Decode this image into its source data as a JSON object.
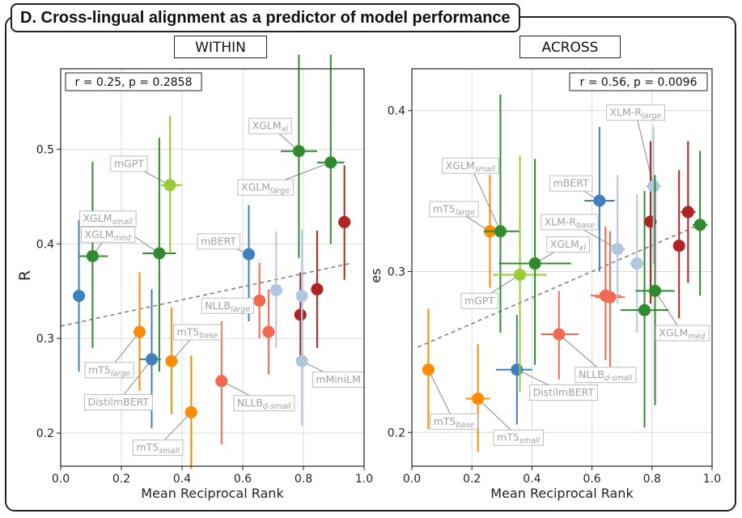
{
  "panel_title": "D. Cross-lingual alignment as a predictor of model performance",
  "colors": {
    "dark_green": "#2e8b2e",
    "light_green": "#9acd32",
    "orange": "#ff8c00",
    "blue": "#3f7fbf",
    "light_blue": "#afc8e0",
    "salmon": "#f4684f",
    "dark_red": "#b22222",
    "trend": "#808080",
    "label_border": "#bdbdbd",
    "label_text": "#a0a0a0"
  },
  "chart_data": [
    {
      "type": "scatter",
      "subtitle": "WITHIN",
      "annotation": "r = 0.25, p = 0.2858",
      "xlabel": "Mean Reciprocal Rank",
      "ylabel": "R",
      "xlim": [
        0.0,
        1.0
      ],
      "ylim": [
        0.165,
        0.585
      ],
      "xticks": [
        0.0,
        0.2,
        0.4,
        0.6,
        0.8,
        1.0
      ],
      "xtick_labels": [
        "0.0",
        "0.2",
        "0.4",
        "0.6",
        "0.8",
        "1.0"
      ],
      "yticks": [
        0.2,
        0.3,
        0.4,
        0.5
      ],
      "ytick_labels": [
        "0.2",
        "0.3",
        "0.4",
        "0.5"
      ],
      "trend": [
        [
          0.0,
          0.313
        ],
        [
          0.95,
          0.379
        ]
      ],
      "points": [
        {
          "x": 0.06,
          "y": 0.345,
          "color": "blue",
          "xerr": [
            0.06,
            0.06
          ],
          "yerr": [
            0.265,
            0.425
          ]
        },
        {
          "x": 0.105,
          "y": 0.387,
          "color": "dark_green",
          "xerr": [
            0.06,
            0.155
          ],
          "yerr": [
            0.29,
            0.487
          ]
        },
        {
          "x": 0.26,
          "y": 0.307,
          "color": "orange",
          "xerr": [
            0.245,
            0.275
          ],
          "yerr": [
            0.245,
            0.37
          ]
        },
        {
          "x": 0.3,
          "y": 0.278,
          "color": "blue",
          "xerr": [
            0.26,
            0.33
          ],
          "yerr": [
            0.205,
            0.352
          ]
        },
        {
          "x": 0.325,
          "y": 0.39,
          "color": "dark_green",
          "xerr": [
            0.27,
            0.38
          ],
          "yerr": [
            0.265,
            0.512
          ]
        },
        {
          "x": 0.36,
          "y": 0.462,
          "color": "light_green",
          "xerr": [
            0.33,
            0.4
          ],
          "yerr": [
            0.39,
            0.535
          ]
        },
        {
          "x": 0.365,
          "y": 0.276,
          "color": "orange",
          "xerr": [
            0.345,
            0.385
          ],
          "yerr": [
            0.22,
            0.333
          ]
        },
        {
          "x": 0.43,
          "y": 0.222,
          "color": "orange",
          "xerr": [
            0.41,
            0.45
          ],
          "yerr": [
            0.162,
            0.282
          ]
        },
        {
          "x": 0.53,
          "y": 0.255,
          "color": "salmon",
          "xerr": [
            0.51,
            0.55
          ],
          "yerr": [
            0.188,
            0.318
          ]
        },
        {
          "x": 0.62,
          "y": 0.389,
          "color": "blue",
          "xerr": [
            0.6,
            0.64
          ],
          "yerr": [
            0.318,
            0.441
          ]
        },
        {
          "x": 0.655,
          "y": 0.34,
          "color": "salmon",
          "xerr": [
            0.635,
            0.675
          ],
          "yerr": [
            0.3,
            0.38
          ]
        },
        {
          "x": 0.685,
          "y": 0.307,
          "color": "salmon",
          "xerr": [
            0.665,
            0.705
          ],
          "yerr": [
            0.262,
            0.352
          ]
        },
        {
          "x": 0.71,
          "y": 0.351,
          "color": "light_blue",
          "xerr": [
            0.69,
            0.73
          ],
          "yerr": [
            0.29,
            0.413
          ]
        },
        {
          "x": 0.785,
          "y": 0.498,
          "color": "dark_green",
          "xerr": [
            0.725,
            0.845
          ],
          "yerr": [
            0.385,
            0.6
          ]
        },
        {
          "x": 0.79,
          "y": 0.325,
          "color": "dark_red",
          "xerr": [
            0.775,
            0.805
          ],
          "yerr": [
            0.28,
            0.37
          ]
        },
        {
          "x": 0.795,
          "y": 0.345,
          "color": "light_blue",
          "xerr": [
            0.78,
            0.81
          ],
          "yerr": [
            0.28,
            0.415
          ]
        },
        {
          "x": 0.795,
          "y": 0.276,
          "color": "light_blue",
          "xerr": [
            0.78,
            0.81
          ],
          "yerr": [
            0.208,
            0.378
          ]
        },
        {
          "x": 0.845,
          "y": 0.352,
          "color": "dark_red",
          "xerr": [
            0.825,
            0.865
          ],
          "yerr": [
            0.29,
            0.414
          ]
        },
        {
          "x": 0.89,
          "y": 0.486,
          "color": "dark_green",
          "xerr": [
            0.845,
            0.935
          ],
          "yerr": [
            0.4,
            0.6
          ]
        },
        {
          "x": 0.935,
          "y": 0.423,
          "color": "dark_red",
          "xerr": [
            0.915,
            0.955
          ],
          "yerr": [
            0.362,
            0.483
          ]
        }
      ],
      "labels": [
        {
          "text": "mGPT",
          "point": 5,
          "lx": 0.225,
          "ly": 0.485
        },
        {
          "text": "XGLM",
          "sub": "xl",
          "point": 13,
          "lx": 0.69,
          "ly": 0.525
        },
        {
          "text": "XGLM",
          "sub": "large",
          "point": 18,
          "lx": 0.675,
          "ly": 0.46
        },
        {
          "text": "XGLM",
          "sub": "small",
          "point": 4,
          "lx": 0.155,
          "ly": 0.427
        },
        {
          "text": "XGLM",
          "sub": "med",
          "point": 1,
          "lx": 0.155,
          "ly": 0.41
        },
        {
          "text": "mBERT",
          "point": 9,
          "lx": 0.52,
          "ly": 0.403
        },
        {
          "text": "NLLB",
          "sub": "large",
          "point": 10,
          "lx": 0.55,
          "ly": 0.335
        },
        {
          "text": "mT5",
          "sub": "base",
          "point": 6,
          "lx": 0.45,
          "ly": 0.307
        },
        {
          "text": "mT5",
          "sub": "large",
          "point": 2,
          "lx": 0.16,
          "ly": 0.267
        },
        {
          "text": "DistilmBERT",
          "point": 3,
          "lx": 0.19,
          "ly": 0.233
        },
        {
          "text": "NLLB",
          "sub": "d-small",
          "point": 8,
          "lx": 0.67,
          "ly": 0.232
        },
        {
          "text": "mMiniLM",
          "point": 16,
          "lx": 0.915,
          "ly": 0.257
        },
        {
          "text": "mT5",
          "sub": "small",
          "point": 7,
          "lx": 0.32,
          "ly": 0.185
        }
      ]
    },
    {
      "type": "scatter",
      "subtitle": "ACROSS",
      "annotation": "r = 0.56, p = 0.0096",
      "xlabel": "Mean Reciprocal Rank",
      "ylabel": "es",
      "xlim": [
        0.0,
        1.0
      ],
      "ylim": [
        0.179,
        0.426
      ],
      "xticks": [
        0.0,
        0.2,
        0.4,
        0.6,
        0.8,
        1.0
      ],
      "xtick_labels": [
        "0.0",
        "0.2",
        "0.4",
        "0.6",
        "0.8",
        "1.0"
      ],
      "yticks": [
        0.2,
        0.3,
        0.4
      ],
      "ytick_labels": [
        "0.2",
        "0.3",
        "0.4"
      ],
      "trend": [
        [
          0.02,
          0.253
        ],
        [
          0.97,
          0.33
        ]
      ],
      "points": [
        {
          "x": 0.055,
          "y": 0.239,
          "color": "orange",
          "xerr": [
            0.035,
            0.075
          ],
          "yerr": [
            0.202,
            0.277
          ]
        },
        {
          "x": 0.22,
          "y": 0.221,
          "color": "orange",
          "xerr": [
            0.18,
            0.26
          ],
          "yerr": [
            0.188,
            0.255
          ]
        },
        {
          "x": 0.26,
          "y": 0.325,
          "color": "orange",
          "xerr": [
            0.24,
            0.28
          ],
          "yerr": [
            0.29,
            0.36
          ]
        },
        {
          "x": 0.295,
          "y": 0.325,
          "color": "dark_green",
          "xerr": [
            0.24,
            0.36
          ],
          "yerr": [
            0.262,
            0.41
          ]
        },
        {
          "x": 0.35,
          "y": 0.239,
          "color": "blue",
          "xerr": [
            0.28,
            0.4
          ],
          "yerr": [
            0.205,
            0.273
          ]
        },
        {
          "x": 0.36,
          "y": 0.298,
          "color": "light_green",
          "xerr": [
            0.27,
            0.45
          ],
          "yerr": [
            0.225,
            0.372
          ]
        },
        {
          "x": 0.41,
          "y": 0.305,
          "color": "dark_green",
          "xerr": [
            0.29,
            0.53
          ],
          "yerr": [
            0.242,
            0.37
          ]
        },
        {
          "x": 0.49,
          "y": 0.261,
          "color": "salmon",
          "xerr": [
            0.43,
            0.555
          ],
          "yerr": [
            0.233,
            0.288
          ]
        },
        {
          "x": 0.625,
          "y": 0.344,
          "color": "blue",
          "xerr": [
            0.575,
            0.675
          ],
          "yerr": [
            0.3,
            0.39
          ]
        },
        {
          "x": 0.645,
          "y": 0.285,
          "color": "salmon",
          "xerr": [
            0.595,
            0.695
          ],
          "yerr": [
            0.245,
            0.328
          ]
        },
        {
          "x": 0.66,
          "y": 0.284,
          "color": "salmon",
          "xerr": [
            0.61,
            0.71
          ],
          "yerr": [
            0.24,
            0.325
          ]
        },
        {
          "x": 0.685,
          "y": 0.314,
          "color": "light_blue",
          "xerr": [
            0.66,
            0.71
          ],
          "yerr": [
            0.28,
            0.36
          ]
        },
        {
          "x": 0.75,
          "y": 0.305,
          "color": "light_blue",
          "xerr": [
            0.725,
            0.775
          ],
          "yerr": [
            0.262,
            0.348
          ]
        },
        {
          "x": 0.775,
          "y": 0.276,
          "color": "dark_green",
          "xerr": [
            0.695,
            0.855
          ],
          "yerr": [
            0.203,
            0.35
          ]
        },
        {
          "x": 0.795,
          "y": 0.331,
          "color": "dark_red",
          "xerr": [
            0.775,
            0.815
          ],
          "yerr": [
            0.28,
            0.381
          ]
        },
        {
          "x": 0.805,
          "y": 0.353,
          "color": "light_blue",
          "xerr": [
            0.78,
            0.83
          ],
          "yerr": [
            0.305,
            0.39
          ]
        },
        {
          "x": 0.81,
          "y": 0.288,
          "color": "dark_green",
          "xerr": [
            0.745,
            0.875
          ],
          "yerr": [
            0.217,
            0.36
          ]
        },
        {
          "x": 0.89,
          "y": 0.316,
          "color": "dark_red",
          "xerr": [
            0.87,
            0.91
          ],
          "yerr": [
            0.271,
            0.363
          ]
        },
        {
          "x": 0.92,
          "y": 0.337,
          "color": "dark_red",
          "xerr": [
            0.895,
            0.945
          ],
          "yerr": [
            0.293,
            0.381
          ]
        },
        {
          "x": 0.96,
          "y": 0.329,
          "color": "dark_green",
          "xerr": [
            0.935,
            0.985
          ],
          "yerr": [
            0.285,
            0.375
          ]
        }
      ],
      "labels": [
        {
          "text": "XGLM",
          "sub": "small",
          "point": 3,
          "lx": 0.195,
          "ly": 0.366
        },
        {
          "text": "mT5",
          "sub": "large",
          "point": 2,
          "lx": 0.14,
          "ly": 0.339
        },
        {
          "text": "XGLM",
          "sub": "xl",
          "point": 6,
          "lx": 0.52,
          "ly": 0.317
        },
        {
          "text": "mGPT",
          "point": 5,
          "lx": 0.225,
          "ly": 0.282
        },
        {
          "text": "mBERT",
          "point": 8,
          "lx": 0.53,
          "ly": 0.355
        },
        {
          "text": "XLM-R",
          "sub": "large",
          "point": 15,
          "lx": 0.745,
          "ly": 0.399
        },
        {
          "text": "XLM-R",
          "sub": "base",
          "point": 11,
          "lx": 0.525,
          "ly": 0.331
        },
        {
          "text": "XGLM",
          "sub": "med",
          "point": 16,
          "lx": 0.9,
          "ly": 0.262
        },
        {
          "text": "NLLB",
          "sub": "d-small",
          "point": 7,
          "lx": 0.645,
          "ly": 0.236
        },
        {
          "text": "DistilmBERT",
          "point": 4,
          "lx": 0.505,
          "ly": 0.225
        },
        {
          "text": "mT5",
          "sub": "base",
          "point": 0,
          "lx": 0.14,
          "ly": 0.207
        },
        {
          "text": "mT5",
          "sub": "small",
          "point": 1,
          "lx": 0.355,
          "ly": 0.197
        }
      ]
    }
  ]
}
